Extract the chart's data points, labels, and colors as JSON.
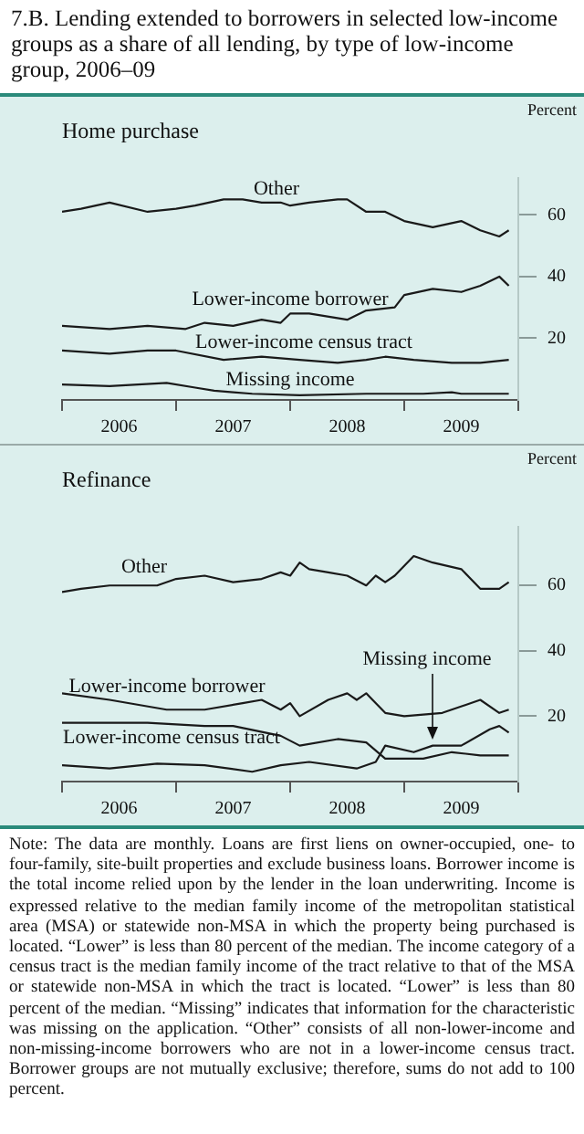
{
  "chart_data": [
    {
      "type": "line",
      "title": "7.B.  Lending extended to borrowers in selected low-income groups as a share of all lending, by type of low-income group, 2006–09",
      "subtitle": "Home purchase",
      "ylabel": "Percent",
      "legend": false,
      "grid": false,
      "xlim": [
        "2006-01",
        "2010-01"
      ],
      "xticks": [
        {
          "value": "2006-01",
          "label": null
        },
        {
          "value": "2006-07",
          "label": "2006"
        },
        {
          "value": "2007-01",
          "label": null
        },
        {
          "value": "2007-07",
          "label": "2007"
        },
        {
          "value": "2008-01",
          "label": null
        },
        {
          "value": "2008-07",
          "label": "2008"
        },
        {
          "value": "2009-01",
          "label": null
        },
        {
          "value": "2009-07",
          "label": "2009"
        },
        {
          "value": "2010-01",
          "label": null
        }
      ],
      "ylim": [
        0,
        72
      ],
      "yticks": [
        20,
        40,
        60
      ],
      "series": [
        {
          "name": "Other",
          "color": "#1a1a1a",
          "x": [
            "2006-01",
            "2006-03",
            "2006-06",
            "2006-10",
            "2007-01",
            "2007-03",
            "2007-06",
            "2007-08",
            "2007-10",
            "2007-12",
            "2008-01",
            "2008-03",
            "2008-06",
            "2008-07",
            "2008-09",
            "2008-11",
            "2009-01",
            "2009-04",
            "2009-07",
            "2009-09",
            "2009-11",
            "2009-12"
          ],
          "values": [
            61,
            62,
            64,
            61,
            62,
            63,
            65,
            65,
            64,
            64,
            63,
            64,
            65,
            65,
            61,
            61,
            58,
            56,
            58,
            55,
            53,
            55
          ]
        },
        {
          "name": "Lower-income borrower",
          "color": "#1a1a1a",
          "x": [
            "2006-01",
            "2006-06",
            "2006-10",
            "2007-02",
            "2007-04",
            "2007-07",
            "2007-10",
            "2007-12",
            "2008-01",
            "2008-03",
            "2008-07",
            "2008-09",
            "2008-12",
            "2009-01",
            "2009-04",
            "2009-07",
            "2009-09",
            "2009-11",
            "2009-12"
          ],
          "values": [
            24,
            23,
            24,
            23,
            25,
            24,
            26,
            25,
            28,
            28,
            26,
            29,
            30,
            34,
            36,
            35,
            37,
            40,
            37
          ]
        },
        {
          "name": "Lower-income census tract",
          "color": "#1a1a1a",
          "x": [
            "2006-01",
            "2006-06",
            "2006-10",
            "2007-01",
            "2007-06",
            "2007-10",
            "2008-02",
            "2008-06",
            "2008-09",
            "2008-11",
            "2009-02",
            "2009-06",
            "2009-09",
            "2009-12"
          ],
          "values": [
            16,
            15,
            16,
            16,
            13,
            14,
            13,
            12,
            13,
            14,
            13,
            12,
            12,
            13
          ]
        },
        {
          "name": "Missing income",
          "color": "#1a1a1a",
          "x": [
            "2006-01",
            "2006-06",
            "2006-12",
            "2007-03",
            "2007-05",
            "2007-07",
            "2007-09",
            "2008-02",
            "2008-09",
            "2009-03",
            "2009-06",
            "2009-07",
            "2009-12"
          ],
          "values": [
            5,
            4.5,
            5.5,
            4,
            3,
            2.5,
            2,
            1.5,
            2,
            2,
            2.5,
            2,
            2
          ]
        }
      ]
    },
    {
      "type": "line",
      "subtitle": "Refinance",
      "ylabel": "Percent",
      "legend": false,
      "grid": false,
      "xlim": [
        "2006-01",
        "2010-01"
      ],
      "xticks": [
        {
          "value": "2006-01",
          "label": null
        },
        {
          "value": "2006-07",
          "label": "2006"
        },
        {
          "value": "2007-01",
          "label": null
        },
        {
          "value": "2007-07",
          "label": "2007"
        },
        {
          "value": "2008-01",
          "label": null
        },
        {
          "value": "2008-07",
          "label": "2008"
        },
        {
          "value": "2009-01",
          "label": null
        },
        {
          "value": "2009-07",
          "label": "2009"
        },
        {
          "value": "2010-01",
          "label": null
        }
      ],
      "ylim": [
        0,
        78
      ],
      "yticks": [
        20,
        40,
        60
      ],
      "series": [
        {
          "name": "Other",
          "color": "#1a1a1a",
          "x": [
            "2006-01",
            "2006-03",
            "2006-06",
            "2006-11",
            "2007-01",
            "2007-04",
            "2007-07",
            "2007-10",
            "2007-12",
            "2008-01",
            "2008-02",
            "2008-03",
            "2008-05",
            "2008-07",
            "2008-09",
            "2008-10",
            "2008-11",
            "2008-12",
            "2009-02",
            "2009-04",
            "2009-07",
            "2009-09",
            "2009-11",
            "2009-12"
          ],
          "values": [
            58,
            59,
            60,
            60,
            62,
            63,
            61,
            62,
            64,
            63,
            67,
            65,
            64,
            63,
            60,
            63,
            61,
            63,
            69,
            67,
            65,
            59,
            59,
            61
          ]
        },
        {
          "name": "Lower-income borrower",
          "color": "#1a1a1a",
          "x": [
            "2006-01",
            "2006-06",
            "2006-12",
            "2007-04",
            "2007-08",
            "2007-10",
            "2007-12",
            "2008-01",
            "2008-02",
            "2008-05",
            "2008-07",
            "2008-08",
            "2008-09",
            "2008-11",
            "2009-01",
            "2009-05",
            "2009-09",
            "2009-11",
            "2009-12"
          ],
          "values": [
            27,
            25,
            22,
            22,
            24,
            25,
            22,
            24,
            20,
            25,
            27,
            25,
            27,
            21,
            20,
            21,
            25,
            21,
            22
          ]
        },
        {
          "name": "Lower-income census tract",
          "color": "#1a1a1a",
          "x": [
            "2006-01",
            "2006-06",
            "2006-10",
            "2007-04",
            "2007-07",
            "2007-12",
            "2008-02",
            "2008-06",
            "2008-09",
            "2008-11",
            "2009-03",
            "2009-06",
            "2009-09",
            "2009-12"
          ],
          "values": [
            18,
            18,
            18,
            17,
            17,
            14,
            11,
            13,
            12,
            7,
            7,
            9,
            8,
            8
          ]
        },
        {
          "name": "Missing income",
          "color": "#1a1a1a",
          "x": [
            "2006-01",
            "2006-06",
            "2006-11",
            "2007-04",
            "2007-09",
            "2007-12",
            "2008-03",
            "2008-08",
            "2008-10",
            "2008-11",
            "2009-02",
            "2009-04",
            "2009-07",
            "2009-10",
            "2009-11",
            "2009-12"
          ],
          "values": [
            5,
            4,
            5.5,
            5,
            3,
            5,
            6,
            4,
            6,
            11,
            9,
            11,
            11,
            16,
            17,
            15
          ]
        }
      ],
      "annotations": [
        "Note: The data are monthly. Loans are first liens on owner-occupied, one- to four-family, site-built properties and exclude business loans. Borrower income is the total income relied upon by the lender in the loan underwriting. Income is expressed relative to the median family income of the metropolitan statistical area (MSA) or statewide non-MSA in which the property being purchased is located. “Lower” is less than 80 percent of the median. The income category of a census tract is the median family income of the tract relative to that of the MSA or statewide non-MSA in which the tract is located. “Lower” is less than 80 percent of the median. “Missing” indicates that information for the characteristic was missing on the application. “Other” consists of all non-lower-income and non-missing-income borrowers who are not in a lower-income census tract. Borrower groups are not mutually exclusive; therefore, sums do not add to 100 percent."
      ]
    }
  ]
}
